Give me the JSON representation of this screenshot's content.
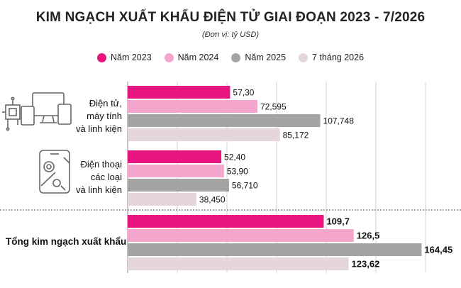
{
  "title": "KIM NGẠCH XUẤT KHẨU ĐIỆN TỬ GIAI ĐOẠN 2023 - 7/2026",
  "subtitle": "(Đơn vị: tỷ USD)",
  "colors": {
    "nam_2023": "#e8147f",
    "nam_2024": "#f4a6cc",
    "nam_2025": "#a4a4a4",
    "thang7_2026": "#e4d6dc"
  },
  "chart_data": {
    "type": "bar",
    "orientation": "horizontal",
    "categories": [
      [
        "Điện tử,",
        "máy tính",
        "và linh kiện"
      ],
      [
        "Điện thoại",
        "các loại",
        "và linh kiện"
      ],
      [
        "Tổng kim ngạch xuất khẩu"
      ]
    ],
    "series": [
      {
        "name": "Năm 2023",
        "color": "#e8147f",
        "values": [
          57.3,
          52.4,
          109.7
        ],
        "labels": [
          "57,30",
          "52,40",
          "109,7"
        ]
      },
      {
        "name": "Năm 2024",
        "color": "#f4a6cc",
        "values": [
          72.595,
          53.9,
          126.5
        ],
        "labels": [
          "72,595",
          "53,90",
          "126,5"
        ]
      },
      {
        "name": "Năm 2025",
        "color": "#a4a4a4",
        "values": [
          107.748,
          56.71,
          164.45
        ],
        "labels": [
          "107,748",
          "56,710",
          "164,45"
        ]
      },
      {
        "name": "7 tháng 2026",
        "color": "#e4d6dc",
        "values": [
          85.172,
          38.45,
          123.62
        ],
        "labels": [
          "85,172",
          "38,450",
          "123,62"
        ]
      }
    ],
    "legend_position": "top-center",
    "grid": true,
    "xlim": [
      0,
      175
    ],
    "icons": [
      "electronics-devices-icon",
      "phone-repair-icon"
    ]
  }
}
